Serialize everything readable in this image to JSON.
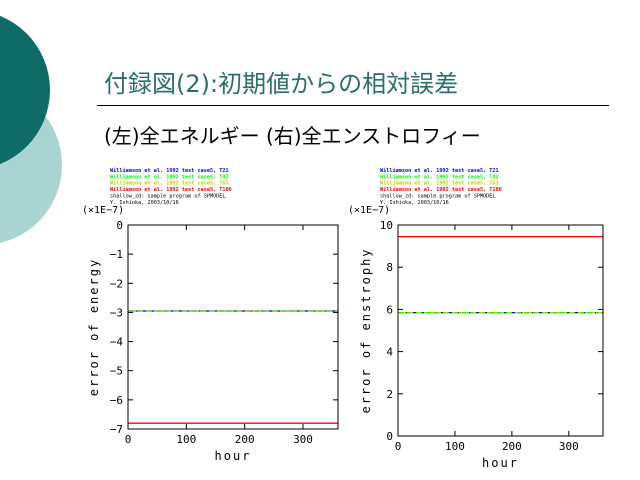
{
  "slide": {
    "title": "付録図(2):初期値からの相対誤差",
    "subtitle": "(左)全エネルギー (右)全エンストロフィー"
  },
  "colors": {
    "accent_dark": "#0f6b66",
    "accent_light": "#a9d4d2",
    "title_text": "#2a6f6a",
    "T21": "#0000ff",
    "T42": "#00ff00",
    "T63": "#c8c800",
    "T106": "#ff0000"
  },
  "chart_data": [
    {
      "type": "line",
      "legend": [
        {
          "text": "Williamson et al. 1992 test case5, T21",
          "color": "#0000ff"
        },
        {
          "text": "Williamson et al. 1992 test case5, T42",
          "color": "#00ff00"
        },
        {
          "text": "Williamson et al. 1992 test case5, T63",
          "color": "#c8c800"
        },
        {
          "text": "Williamson et al. 1992 test case5, T106",
          "color": "#ff0000"
        }
      ],
      "credits": [
        "shallow_zd: sample program of SPMODEL",
        "Y. Ishioka, 2003/10/16"
      ],
      "scale_label": "(×1E−7)",
      "xlabel": "hour",
      "ylabel": "error of energy",
      "xlim": [
        0,
        360
      ],
      "ylim": [
        -7,
        0
      ],
      "xticks": [
        0,
        100,
        200,
        300
      ],
      "yticks": [
        0,
        -1,
        -2,
        -3,
        -4,
        -5,
        -6,
        -7
      ],
      "series": [
        {
          "name": "T21",
          "color": "#0000ff",
          "x": [
            0,
            360
          ],
          "y": [
            -2.95,
            -2.95
          ]
        },
        {
          "name": "T42",
          "color": "#00ff00",
          "x": [
            0,
            360
          ],
          "y": [
            -2.95,
            -2.95
          ]
        },
        {
          "name": "T63",
          "color": "#c8c800",
          "x": [
            0,
            360
          ],
          "y": [
            -2.95,
            -2.95
          ]
        },
        {
          "name": "T106",
          "color": "#ff0000",
          "x": [
            0,
            360
          ],
          "y": [
            -6.8,
            -6.8
          ]
        }
      ]
    },
    {
      "type": "line",
      "legend": [
        {
          "text": "Williamson et al. 1992 test case5, T21",
          "color": "#0000ff"
        },
        {
          "text": "Williamson et al. 1992 test case5, T42",
          "color": "#00ff00"
        },
        {
          "text": "Williamson et al. 1992 test case5, T63",
          "color": "#c8c800"
        },
        {
          "text": "Williamson et al. 1992 test case5, T106",
          "color": "#ff0000"
        }
      ],
      "credits": [
        "shallow_zd: sample program of SPMODEL",
        "Y. Ishioka, 2003/10/16"
      ],
      "scale_label": "(×1E−7)",
      "xlabel": "hour",
      "ylabel": "error of enstrophy",
      "xlim": [
        0,
        360
      ],
      "ylim": [
        0,
        10
      ],
      "xticks": [
        0,
        100,
        200,
        300
      ],
      "yticks": [
        0,
        2,
        4,
        6,
        8,
        10
      ],
      "series": [
        {
          "name": "T21",
          "color": "#0000ff",
          "x": [
            0,
            360
          ],
          "y": [
            5.85,
            5.85
          ]
        },
        {
          "name": "T42",
          "color": "#00ff00",
          "x": [
            0,
            360
          ],
          "y": [
            5.85,
            5.85
          ]
        },
        {
          "name": "T63",
          "color": "#c8c800",
          "x": [
            0,
            360
          ],
          "y": [
            5.85,
            5.85
          ]
        },
        {
          "name": "T106",
          "color": "#ff0000",
          "x": [
            0,
            360
          ],
          "y": [
            9.45,
            9.45
          ]
        }
      ]
    }
  ]
}
